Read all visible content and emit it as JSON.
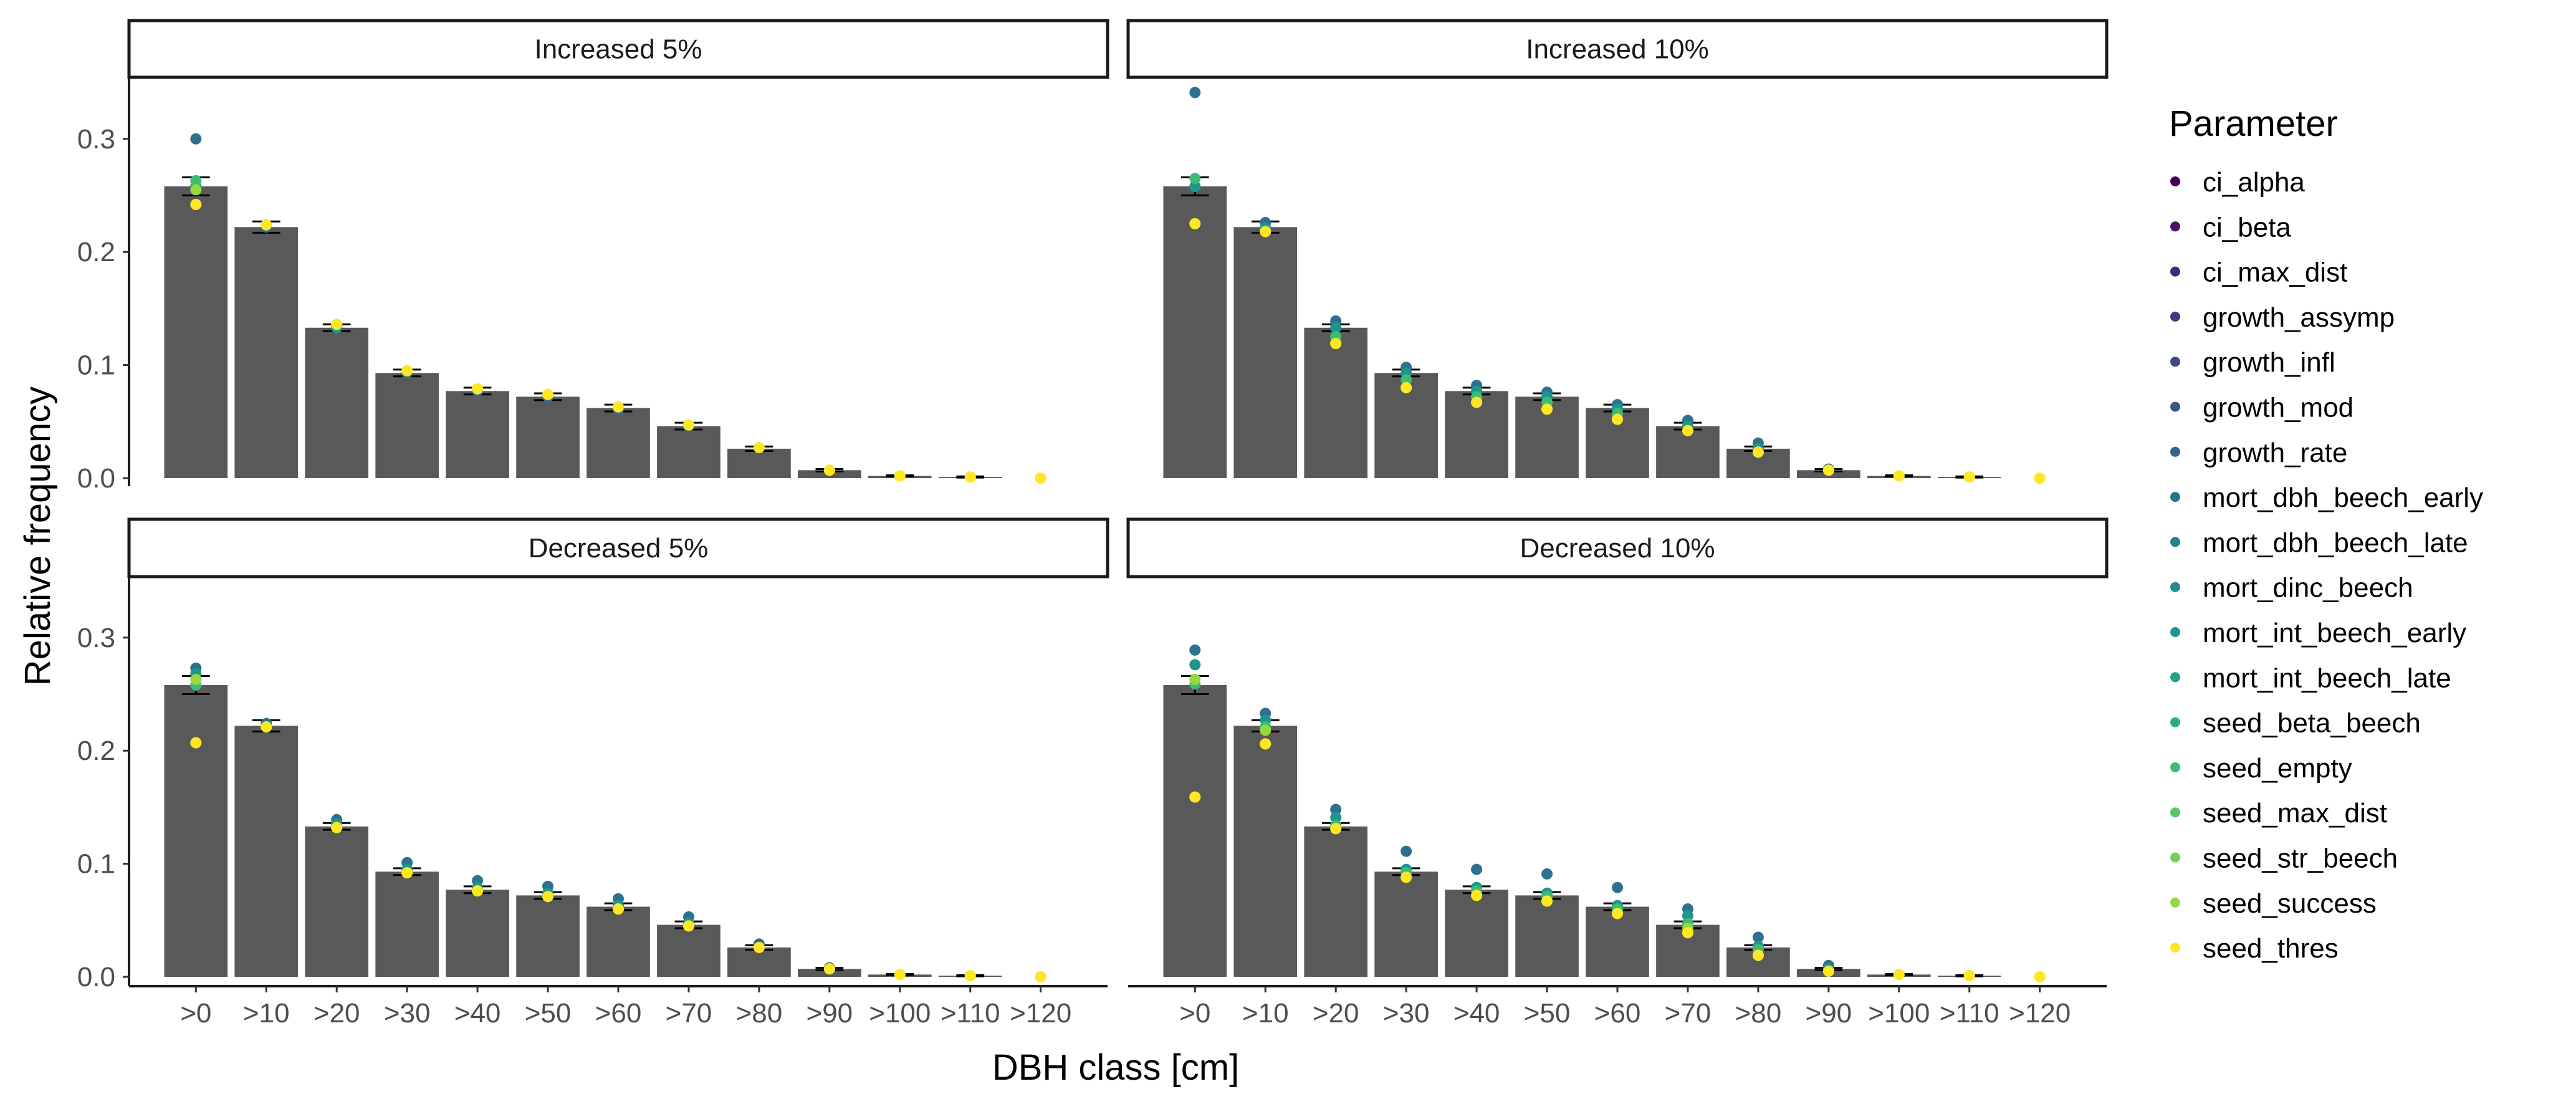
{
  "chart_data": {
    "type": "bar",
    "xlabel": "DBH class [cm]",
    "ylabel": "Relative frequency",
    "categories": [
      ">0",
      ">10",
      ">20",
      ">30",
      ">40",
      ">50",
      ">60",
      ">70",
      ">80",
      ">90",
      ">100",
      ">110",
      ">120"
    ],
    "y_ticks": [
      "0.0",
      "0.1",
      "0.2",
      "0.3"
    ],
    "ylim": [
      0,
      0.35
    ],
    "grid": false,
    "legend_position": "right",
    "legend_title": "Parameter",
    "base_values": [
      0.258,
      0.222,
      0.133,
      0.093,
      0.077,
      0.072,
      0.062,
      0.046,
      0.026,
      0.007,
      0.002,
      0.001,
      0.0
    ],
    "error_margin": [
      0.008,
      0.005,
      0.003,
      0.003,
      0.003,
      0.003,
      0.003,
      0.003,
      0.002,
      0.001,
      0.0005,
      0.0005,
      0.0
    ],
    "parameters": [
      {
        "name": "ci_alpha",
        "color": "#440154"
      },
      {
        "name": "ci_beta",
        "color": "#481467"
      },
      {
        "name": "ci_max_dist",
        "color": "#482576"
      },
      {
        "name": "growth_assymp",
        "color": "#453781"
      },
      {
        "name": "growth_infl",
        "color": "#3f4788"
      },
      {
        "name": "growth_mod",
        "color": "#39558c"
      },
      {
        "name": "growth_rate",
        "color": "#32648e"
      },
      {
        "name": "mort_dbh_beech_early",
        "color": "#2d718e"
      },
      {
        "name": "mort_dbh_beech_late",
        "color": "#287d8e"
      },
      {
        "name": "mort_dinc_beech",
        "color": "#238a8d"
      },
      {
        "name": "mort_int_beech_early",
        "color": "#1f968b"
      },
      {
        "name": "mort_int_beech_late",
        "color": "#20a386"
      },
      {
        "name": "seed_beta_beech",
        "color": "#29af7f"
      },
      {
        "name": "seed_empty",
        "color": "#3dbc74"
      },
      {
        "name": "seed_max_dist",
        "color": "#56c667"
      },
      {
        "name": "seed_str_beech",
        "color": "#75d054"
      },
      {
        "name": "seed_success",
        "color": "#95d840"
      },
      {
        "name": "seed_thres",
        "color": "#fde725"
      }
    ],
    "bar_color": "#595959",
    "panels": [
      {
        "title": "Increased 5%",
        "points": [
          {
            "category": ">0",
            "values": [
              0.3,
              0.258,
              0.263,
              0.255,
              0.242
            ]
          },
          {
            "category": ">10",
            "values": [
              0.222,
              0.224
            ]
          },
          {
            "category": ">20",
            "values": [
              0.135,
              0.133,
              0.136
            ]
          },
          {
            "category": ">30",
            "values": [
              0.093,
              0.095
            ]
          },
          {
            "category": ">40",
            "values": [
              0.077,
              0.079
            ]
          },
          {
            "category": ">50",
            "values": [
              0.072,
              0.074
            ]
          },
          {
            "category": ">60",
            "values": [
              0.061,
              0.063
            ]
          },
          {
            "category": ">70",
            "values": [
              0.046,
              0.047
            ]
          },
          {
            "category": ">80",
            "values": [
              0.027
            ]
          },
          {
            "category": ">90",
            "values": [
              0.007
            ]
          },
          {
            "category": ">100",
            "values": [
              0.002
            ]
          },
          {
            "category": ">110",
            "values": [
              0.001
            ]
          },
          {
            "category": ">120",
            "values": [
              0.0
            ]
          }
        ]
      },
      {
        "title": "Increased 10%",
        "points": [
          {
            "category": ">0",
            "values": [
              0.341,
              0.258,
              0.265,
              0.225
            ]
          },
          {
            "category": ">10",
            "values": [
              0.226,
              0.221,
              0.218
            ]
          },
          {
            "category": ">20",
            "values": [
              0.139,
              0.133,
              0.125,
              0.119
            ]
          },
          {
            "category": ">30",
            "values": [
              0.098,
              0.093,
              0.087,
              0.08
            ]
          },
          {
            "category": ">40",
            "values": [
              0.082,
              0.077,
              0.072,
              0.067
            ]
          },
          {
            "category": ">50",
            "values": [
              0.076,
              0.072,
              0.067,
              0.061
            ]
          },
          {
            "category": ">60",
            "values": [
              0.065,
              0.061,
              0.057,
              0.052
            ]
          },
          {
            "category": ">70",
            "values": [
              0.051,
              0.046,
              0.042
            ]
          },
          {
            "category": ">80",
            "values": [
              0.031,
              0.026,
              0.023
            ]
          },
          {
            "category": ">90",
            "values": [
              0.008,
              0.007
            ]
          },
          {
            "category": ">100",
            "values": [
              0.002
            ]
          },
          {
            "category": ">110",
            "values": [
              0.001
            ]
          },
          {
            "category": ">120",
            "values": [
              0.0
            ]
          }
        ]
      },
      {
        "title": "Decreased 5%",
        "points": [
          {
            "category": ">0",
            "values": [
              0.273,
              0.268,
              0.258,
              0.263,
              0.207
            ]
          },
          {
            "category": ">10",
            "values": [
              0.224,
              0.221
            ]
          },
          {
            "category": ">20",
            "values": [
              0.139,
              0.135,
              0.132
            ]
          },
          {
            "category": ">30",
            "values": [
              0.101,
              0.095,
              0.092
            ]
          },
          {
            "category": ">40",
            "values": [
              0.085,
              0.079,
              0.076
            ]
          },
          {
            "category": ">50",
            "values": [
              0.08,
              0.074,
              0.071
            ]
          },
          {
            "category": ">60",
            "values": [
              0.069,
              0.063,
              0.06
            ]
          },
          {
            "category": ">70",
            "values": [
              0.053,
              0.047,
              0.045
            ]
          },
          {
            "category": ">80",
            "values": [
              0.029,
              0.026
            ]
          },
          {
            "category": ">90",
            "values": [
              0.008,
              0.007
            ]
          },
          {
            "category": ">100",
            "values": [
              0.002
            ]
          },
          {
            "category": ">110",
            "values": [
              0.001
            ]
          },
          {
            "category": ">120",
            "values": [
              0.0
            ]
          }
        ]
      },
      {
        "title": "Decreased 10%",
        "points": [
          {
            "category": ">0",
            "values": [
              0.289,
              0.276,
              0.259,
              0.263,
              0.159
            ]
          },
          {
            "category": ">10",
            "values": [
              0.233,
              0.227,
              0.221,
              0.218,
              0.206
            ]
          },
          {
            "category": ">20",
            "values": [
              0.148,
              0.141,
              0.134,
              0.131
            ]
          },
          {
            "category": ">30",
            "values": [
              0.111,
              0.095,
              0.092,
              0.088
            ]
          },
          {
            "category": ">40",
            "values": [
              0.095,
              0.079,
              0.076,
              0.072
            ]
          },
          {
            "category": ">50",
            "values": [
              0.091,
              0.074,
              0.071,
              0.067
            ]
          },
          {
            "category": ">60",
            "values": [
              0.079,
              0.063,
              0.06,
              0.056
            ]
          },
          {
            "category": ">70",
            "values": [
              0.06,
              0.054,
              0.047,
              0.043,
              0.039
            ]
          },
          {
            "category": ">80",
            "values": [
              0.035,
              0.027,
              0.024,
              0.019
            ]
          },
          {
            "category": ">90",
            "values": [
              0.01,
              0.007,
              0.005
            ]
          },
          {
            "category": ">100",
            "values": [
              0.002
            ]
          },
          {
            "category": ">110",
            "values": [
              0.001
            ]
          },
          {
            "category": ">120",
            "values": [
              0.0
            ]
          }
        ]
      }
    ]
  }
}
